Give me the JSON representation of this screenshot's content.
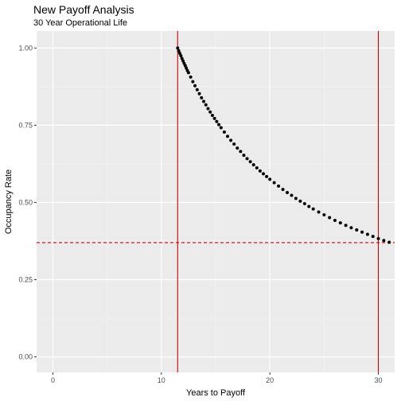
{
  "chart_data": {
    "type": "scatter",
    "title": "New Payoff Analysis",
    "subtitle": "30 Year Operational Life",
    "xlabel": "Years to Payoff",
    "ylabel": "Occupancy Rate",
    "xlim": [
      -1.5,
      31.5
    ],
    "ylim": [
      -0.05,
      1.055
    ],
    "x_ticks": [
      0,
      10,
      20,
      30
    ],
    "y_ticks": [
      0.0,
      0.25,
      0.5,
      0.75,
      1.0
    ],
    "x_tick_labels": [
      "0",
      "10",
      "20",
      "30"
    ],
    "y_tick_labels": [
      "0.00",
      "0.25",
      "0.50",
      "0.75",
      "1.00"
    ],
    "vlines": [
      11.5,
      30
    ],
    "hline": 0.37,
    "grid": true,
    "series": [
      {
        "x": [
          11.5,
          11.6,
          11.7,
          11.8,
          11.9,
          12.0,
          12.1,
          12.2,
          12.3,
          12.4,
          12.5,
          12.7,
          12.9,
          13.1,
          13.3,
          13.5,
          13.7,
          13.9,
          14.1,
          14.3,
          14.5,
          14.7,
          14.9,
          15.1,
          15.3,
          15.5,
          15.8,
          16.1,
          16.4,
          16.7,
          17.0,
          17.3,
          17.6,
          17.9,
          18.2,
          18.5,
          18.8,
          19.1,
          19.4,
          19.7,
          20.0,
          20.4,
          20.8,
          21.2,
          21.6,
          22.0,
          22.4,
          22.8,
          23.2,
          23.6,
          24.0,
          24.5,
          25.0,
          25.5,
          26.0,
          26.5,
          27.0,
          27.5,
          28.0,
          28.5,
          29.0,
          29.5,
          30.0,
          30.5,
          31.0
        ],
        "y": [
          1.0,
          0.991,
          0.983,
          0.975,
          0.966,
          0.958,
          0.95,
          0.943,
          0.935,
          0.927,
          0.92,
          0.906,
          0.891,
          0.878,
          0.865,
          0.852,
          0.839,
          0.827,
          0.816,
          0.804,
          0.793,
          0.782,
          0.772,
          0.762,
          0.752,
          0.742,
          0.728,
          0.714,
          0.701,
          0.689,
          0.676,
          0.665,
          0.653,
          0.642,
          0.632,
          0.622,
          0.612,
          0.602,
          0.593,
          0.584,
          0.575,
          0.564,
          0.553,
          0.542,
          0.532,
          0.523,
          0.513,
          0.504,
          0.496,
          0.487,
          0.479,
          0.469,
          0.46,
          0.451,
          0.442,
          0.434,
          0.426,
          0.418,
          0.411,
          0.404,
          0.397,
          0.39,
          0.383,
          0.377,
          0.371
        ]
      }
    ]
  }
}
